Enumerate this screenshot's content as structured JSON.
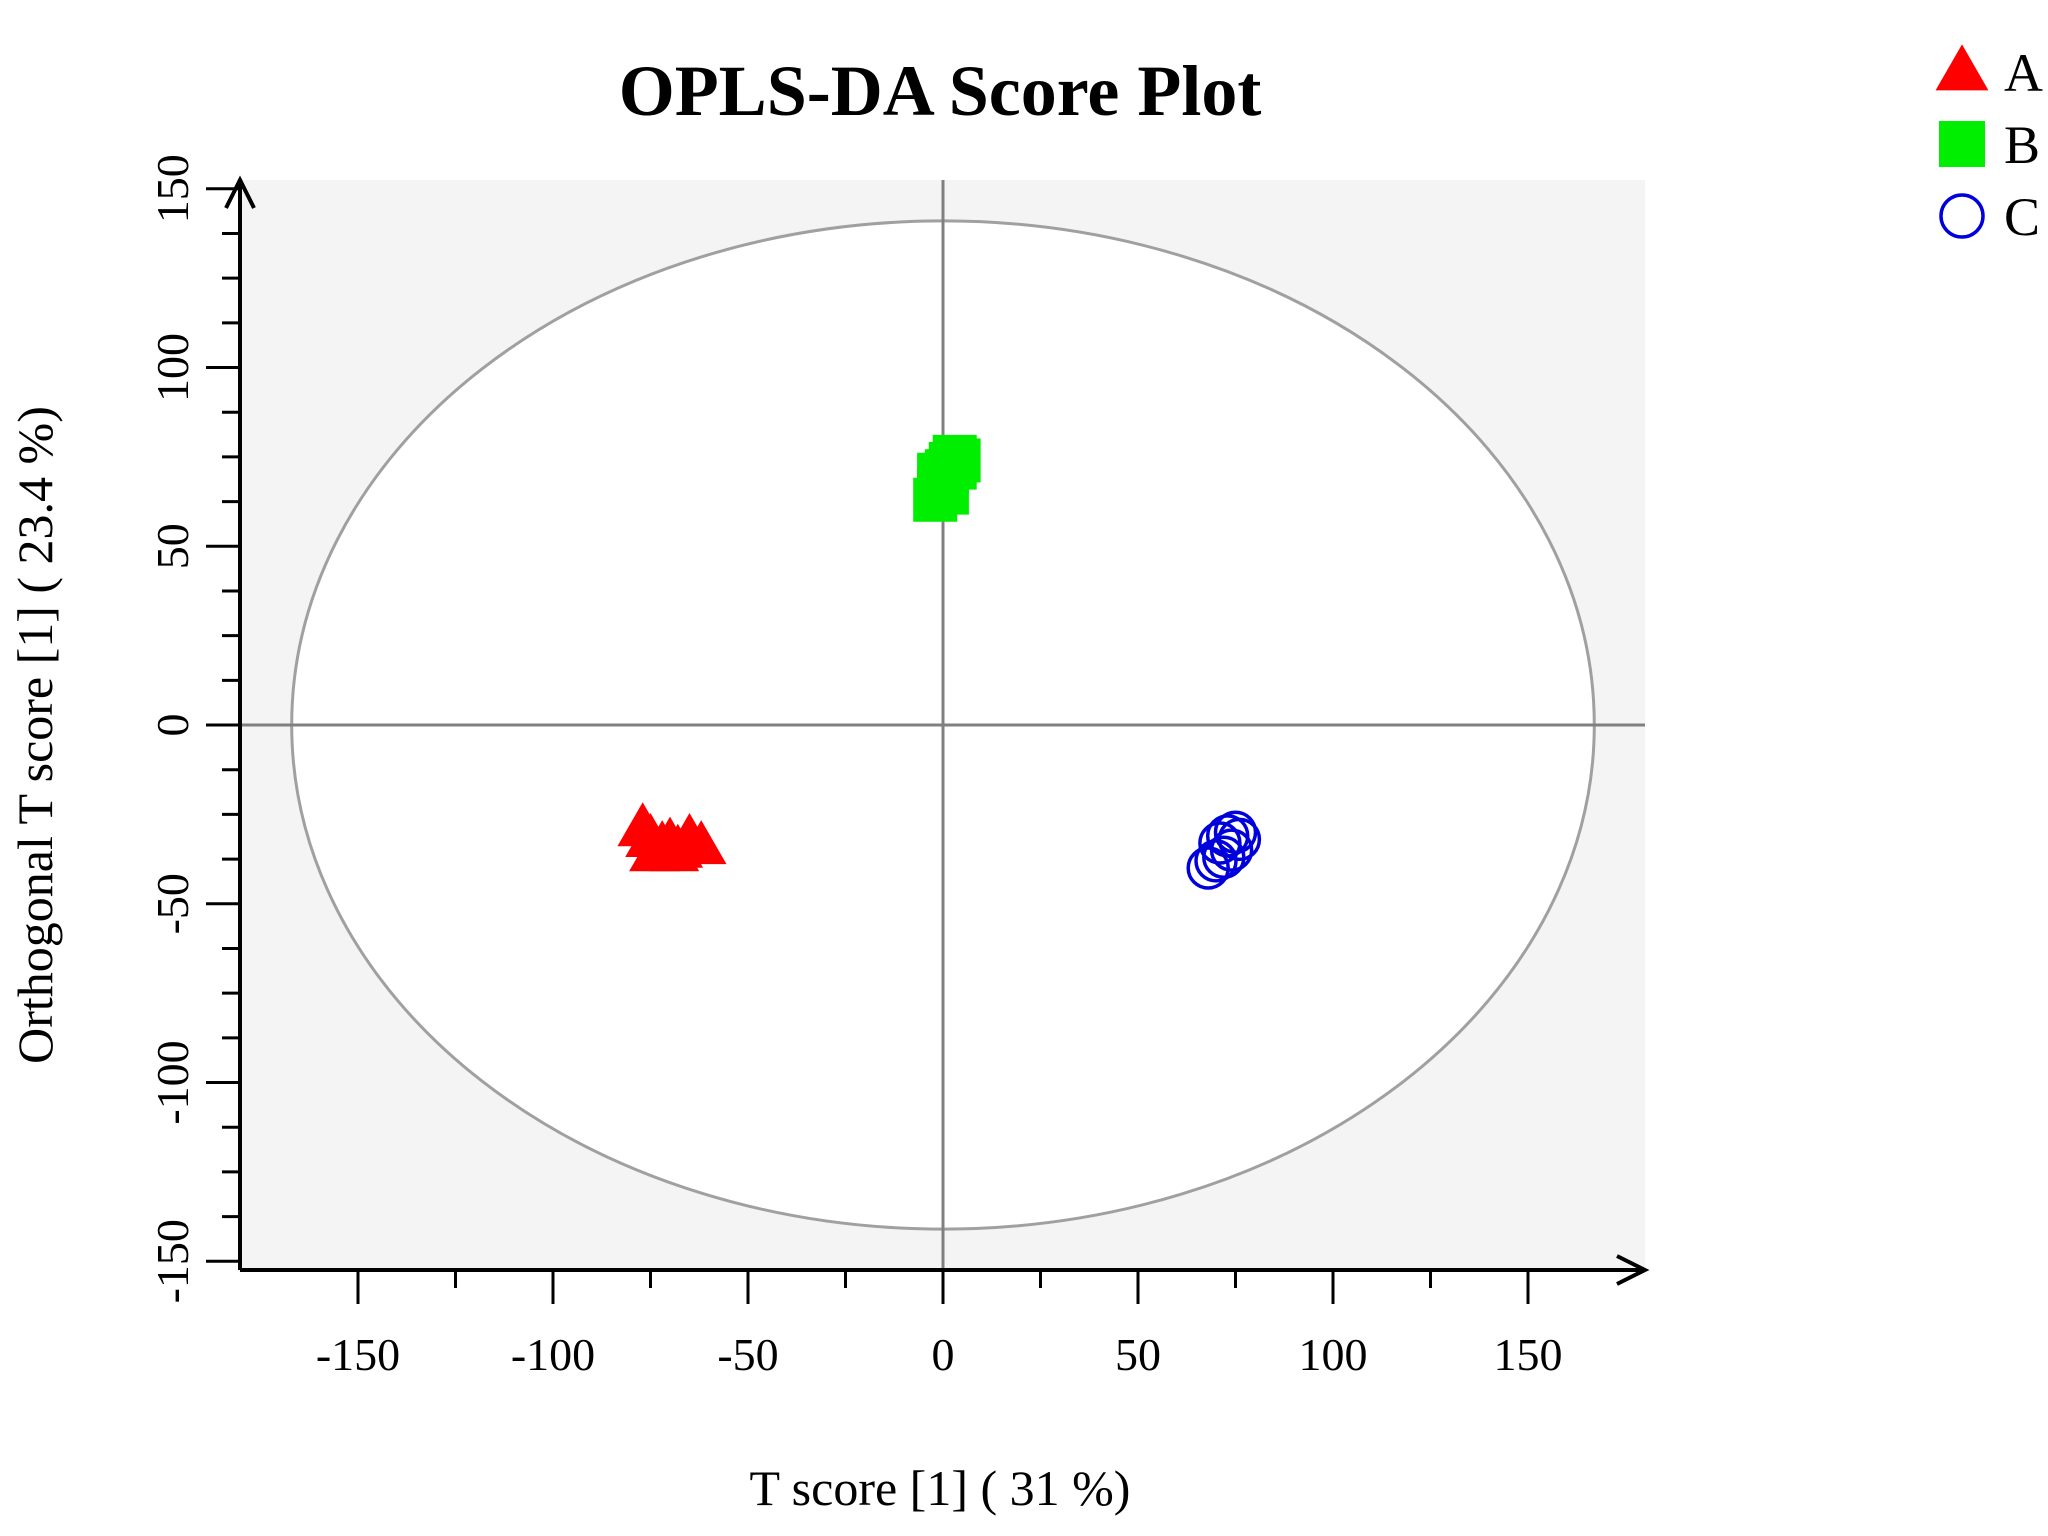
{
  "chart_data": {
    "type": "scatter",
    "title": "OPLS-DA Score Plot",
    "xlabel": "T score [1] ( 31 %)",
    "ylabel": "Orthogonal T score [1] ( 23.4 %)",
    "xlim": [
      -180,
      180
    ],
    "ylim": [
      -152,
      152
    ],
    "xticks": [
      -150,
      -100,
      -50,
      0,
      50,
      100,
      150
    ],
    "yticks": [
      -150,
      -100,
      -50,
      0,
      50,
      100,
      150
    ],
    "minor_ticks": true,
    "ellipse": {
      "center": [
        0,
        0
      ],
      "rx": 167,
      "ry": 141
    },
    "reference_lines": {
      "x": 0,
      "y": 0
    },
    "background": "#f4f4f4",
    "legend_position": "top-right",
    "series": [
      {
        "name": "A",
        "marker": "triangle",
        "color": "#ff0000",
        "points": [
          [
            -77,
            -29
          ],
          [
            -75,
            -32
          ],
          [
            -72,
            -34
          ],
          [
            -70,
            -33
          ],
          [
            -68,
            -35
          ],
          [
            -65,
            -32
          ],
          [
            -62,
            -34
          ],
          [
            -74,
            -36
          ],
          [
            -69,
            -36
          ]
        ]
      },
      {
        "name": "B",
        "marker": "square",
        "color": "#00ee00",
        "points": [
          [
            -2,
            63
          ],
          [
            -1,
            66
          ],
          [
            0,
            68
          ],
          [
            1,
            71
          ],
          [
            2,
            73
          ],
          [
            3,
            75
          ],
          [
            4,
            74
          ],
          [
            -1,
            70
          ],
          [
            1,
            65
          ],
          [
            3,
            72
          ]
        ]
      },
      {
        "name": "C",
        "marker": "circle",
        "color": "#0000dd",
        "points": [
          [
            68,
            -40
          ],
          [
            70,
            -38
          ],
          [
            71,
            -33
          ],
          [
            73,
            -31
          ],
          [
            74,
            -35
          ],
          [
            75,
            -30
          ],
          [
            76,
            -32
          ],
          [
            72,
            -37
          ]
        ]
      }
    ]
  }
}
